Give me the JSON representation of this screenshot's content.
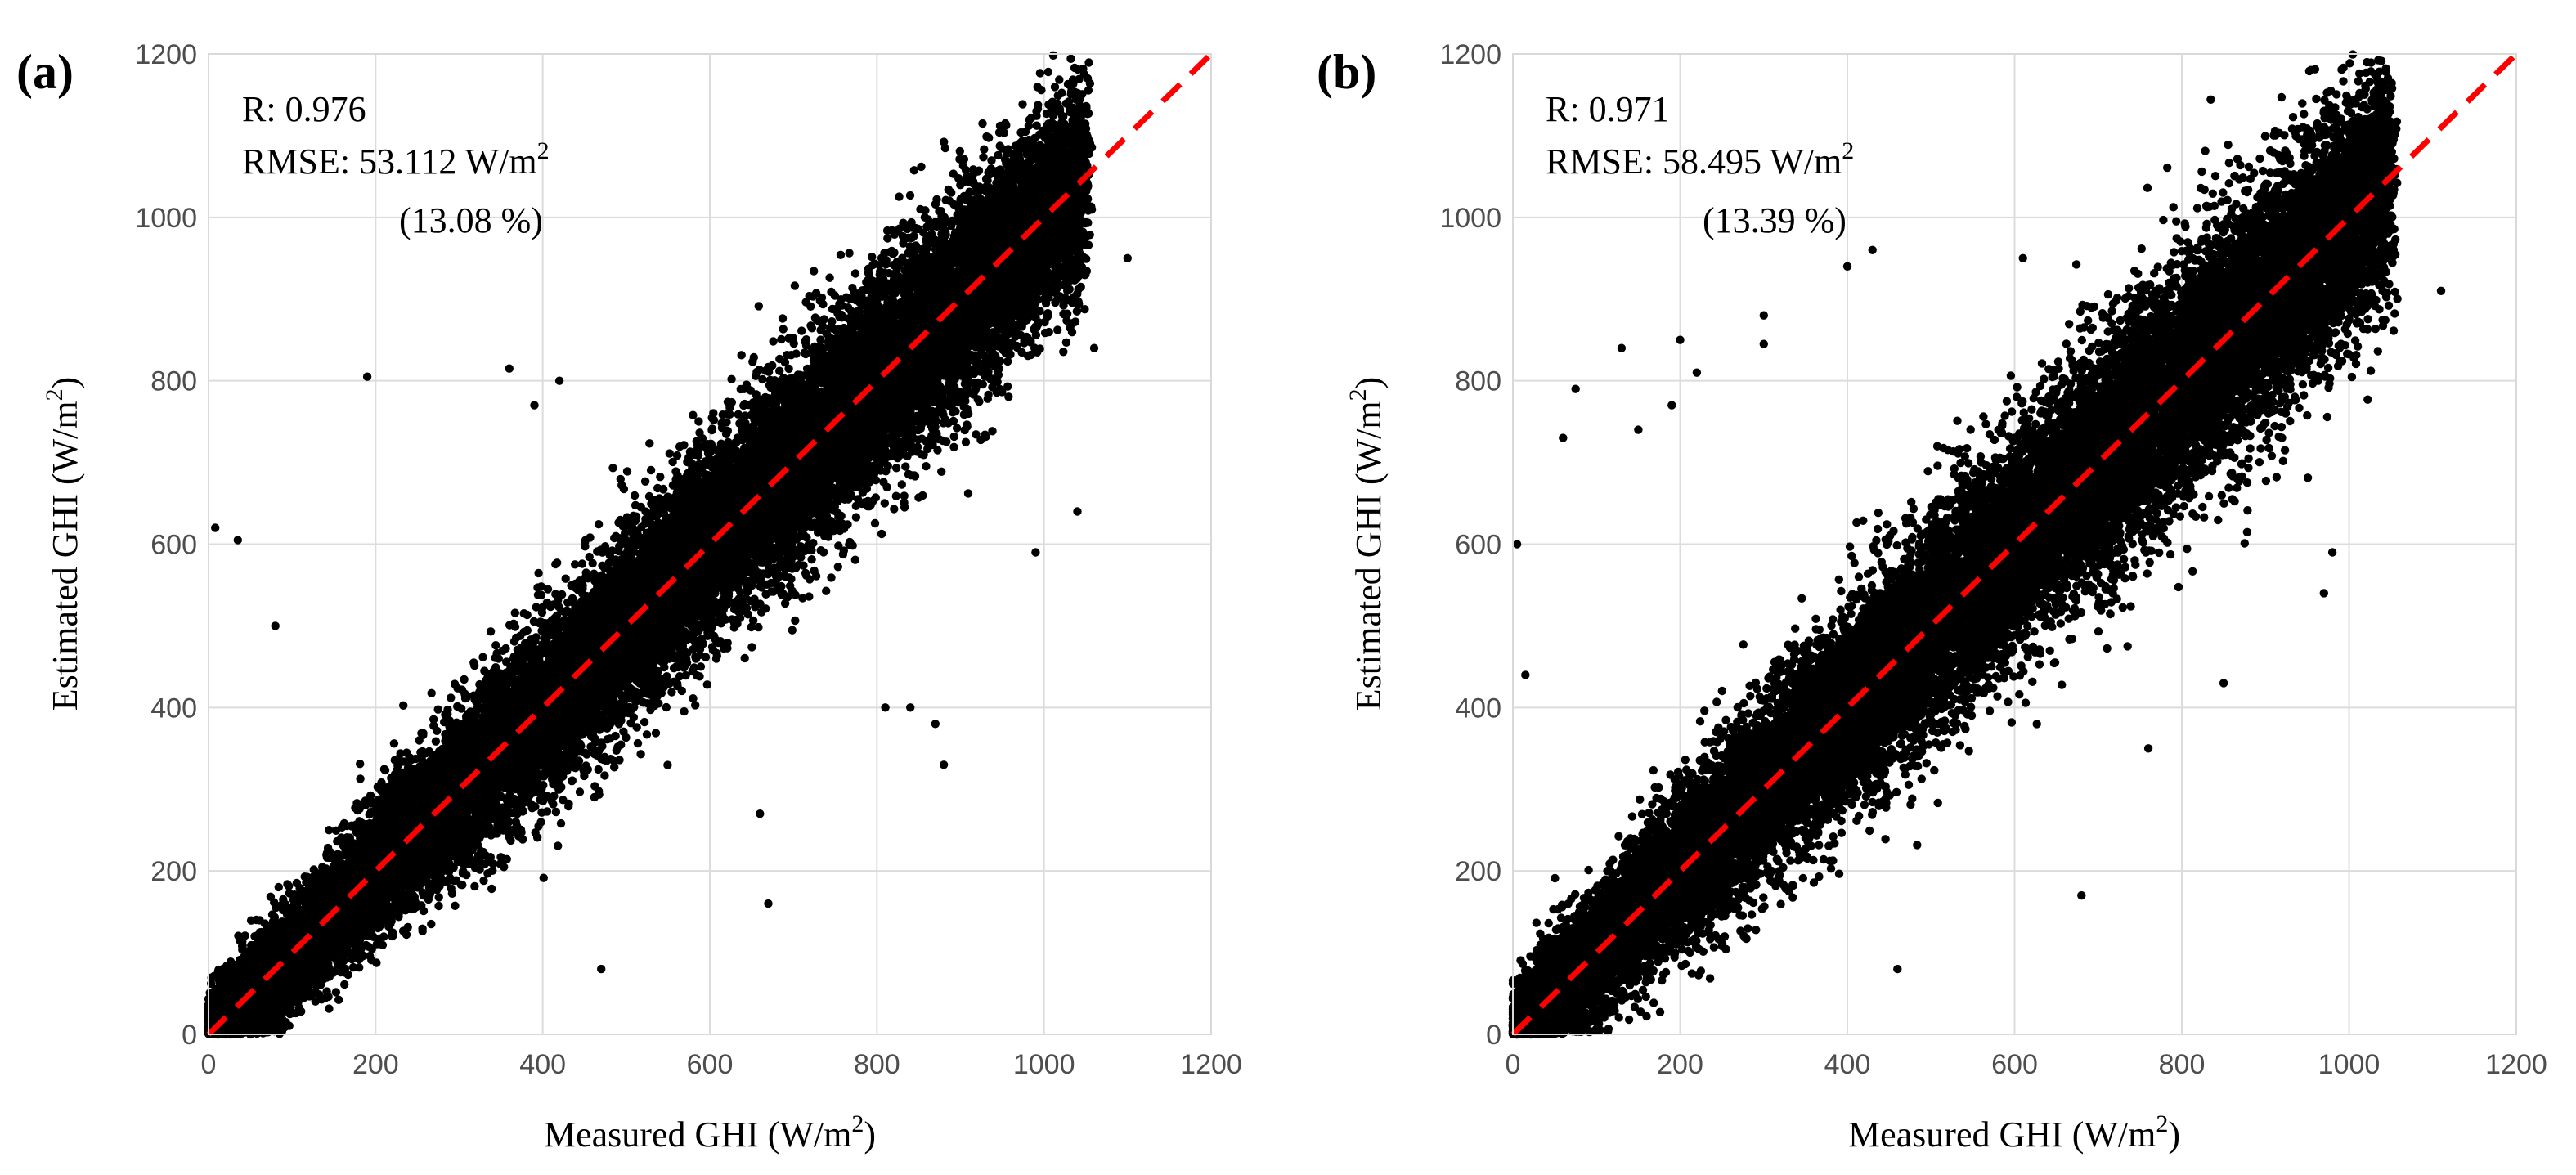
{
  "chart_data": [
    {
      "type": "scatter",
      "panel_label": "(a)",
      "xlabel": "Measured GHI (W/m",
      "ylabel": "Estimated GHI (W/m",
      "label_sup": "2",
      "label_close": ")",
      "xlim": [
        0,
        1200
      ],
      "ylim": [
        0,
        1200
      ],
      "xticks": [
        "0",
        "200",
        "400",
        "600",
        "800",
        "1000",
        "1200"
      ],
      "yticks": [
        "0",
        "200",
        "400",
        "600",
        "800",
        "1000",
        "1200"
      ],
      "grid": true,
      "stats": {
        "r_line": "R: 0.976",
        "rmse_line": "RMSE: 53.112 W/m",
        "rmse_sup": "2",
        "pct_line": "(13.08 %)"
      },
      "reference_line": {
        "x": [
          0,
          1200
        ],
        "y": [
          0,
          1200
        ],
        "color": "#ff0000",
        "style": "dashed"
      },
      "point_color": "#000000",
      "cloud": {
        "n": 22000,
        "x_max": 1050,
        "spread_base": 25,
        "spread_scale": 0.09
      },
      "outliers": {
        "x": [
          8,
          35,
          80,
          190,
          360,
          390,
          660,
          670,
          810,
          840,
          870,
          880,
          990,
          1040,
          1060,
          1100,
          470,
          420
        ],
        "y": [
          620,
          605,
          500,
          805,
          815,
          770,
          270,
          160,
          400,
          400,
          380,
          330,
          590,
          640,
          840,
          950,
          80,
          800
        ]
      }
    },
    {
      "type": "scatter",
      "panel_label": "(b)",
      "xlabel": "Measured GHI (W/m",
      "ylabel": "Estimated GHI (W/m",
      "label_sup": "2",
      "label_close": ")",
      "xlim": [
        0,
        1200
      ],
      "ylim": [
        0,
        1200
      ],
      "xticks": [
        "0",
        "200",
        "400",
        "600",
        "800",
        "1000",
        "1200"
      ],
      "yticks": [
        "0",
        "200",
        "400",
        "600",
        "800",
        "1000",
        "1200"
      ],
      "grid": true,
      "stats": {
        "r_line": "R: 0.971",
        "rmse_line": "RMSE: 58.495 W/m",
        "rmse_sup": "2",
        "pct_line": "(13.39 %)"
      },
      "reference_line": {
        "x": [
          0,
          1200
        ],
        "y": [
          0,
          1200
        ],
        "color": "#ff0000",
        "style": "dashed"
      },
      "point_color": "#000000",
      "cloud": {
        "n": 22000,
        "x_max": 1050,
        "spread_base": 30,
        "spread_scale": 0.1
      },
      "outliers": {
        "x": [
          5,
          15,
          60,
          75,
          130,
          150,
          190,
          200,
          220,
          300,
          300,
          400,
          430,
          460,
          610,
          680,
          760,
          850,
          970,
          980,
          1110,
          40
        ],
        "y": [
          600,
          440,
          730,
          790,
          840,
          740,
          770,
          850,
          810,
          880,
          845,
          940,
          960,
          80,
          950,
          170,
          350,
          430,
          540,
          590,
          910,
          75
        ]
      }
    }
  ]
}
